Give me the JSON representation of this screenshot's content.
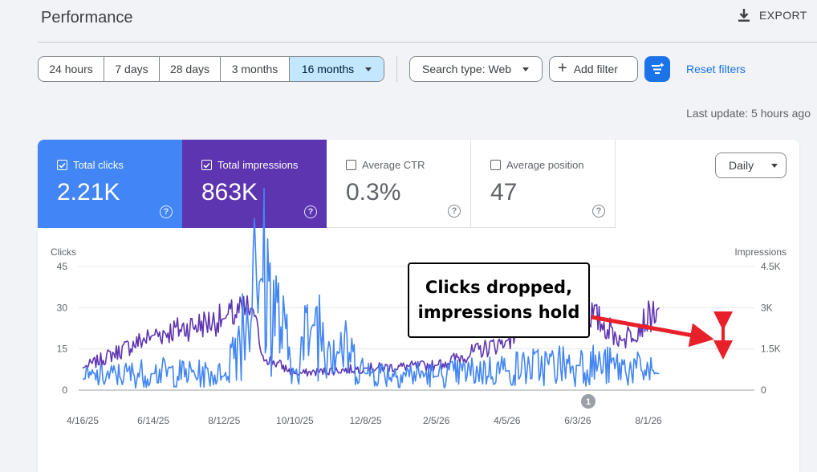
{
  "page": {
    "title": "Performance",
    "export_label": "EXPORT"
  },
  "date_range": {
    "options": [
      "24 hours",
      "7 days",
      "28 days",
      "3 months",
      "16 months"
    ],
    "selected": "16 months"
  },
  "filters": {
    "search_type": "Search type: Web",
    "add_filter": "Add filter",
    "reset": "Reset filters"
  },
  "last_update": "Last update: 5 hours ago",
  "metrics": [
    {
      "label": "Total clicks",
      "value": "2.21K",
      "checked": true,
      "color": "#4285f4"
    },
    {
      "label": "Total impressions",
      "value": "863K",
      "checked": true,
      "color": "#5e35b1"
    },
    {
      "label": "Average CTR",
      "value": "0.3%",
      "checked": false
    },
    {
      "label": "Average position",
      "value": "47",
      "checked": false
    }
  ],
  "granularity": "Daily",
  "annotation": {
    "marker": "1",
    "callout": "Clicks dropped, impressions hold",
    "arrow_color": "#e8202a"
  },
  "chart_data": {
    "type": "line",
    "x_tick_labels": [
      "4/16/25",
      "6/14/25",
      "8/12/25",
      "10/10/25",
      "12/8/25",
      "2/5/26",
      "4/5/26",
      "6/3/26",
      "8/1/26"
    ],
    "y_left": {
      "label": "Clicks",
      "ticks": [
        0,
        15,
        30,
        45
      ],
      "range": [
        0,
        45
      ]
    },
    "y_right": {
      "label": "Impressions",
      "ticks": [
        "0",
        "1.5K",
        "3K",
        "4.5K"
      ],
      "range": [
        0,
        4500
      ]
    },
    "grid": true,
    "series": [
      {
        "name": "Total impressions",
        "axis": "right",
        "color": "#5e35b1",
        "segments": [
          {
            "x": "4/16/25",
            "y": 800
          },
          {
            "x": "6/14/25",
            "y": 2000
          },
          {
            "x": "8/12/25",
            "y": 2600
          },
          {
            "x": "9/5/25",
            "y": 3000
          },
          {
            "x": "9/12/25",
            "y": 1300
          },
          {
            "x": "10/10/25",
            "y": 600
          },
          {
            "x": "12/8/25",
            "y": 800
          },
          {
            "x": "2/5/26",
            "y": 900
          },
          {
            "x": "4/5/26",
            "y": 1800
          },
          {
            "x": "5/10/26",
            "y": 3500
          },
          {
            "x": "6/3/26",
            "y": 3200
          },
          {
            "x": "7/10/26",
            "y": 1800
          },
          {
            "x": "8/10/26",
            "y": 3000
          }
        ]
      },
      {
        "name": "Total clicks",
        "axis": "left",
        "color": "#4285f4",
        "segments": [
          {
            "x": "4/16/25",
            "y": 4
          },
          {
            "x": "6/14/25",
            "y": 6
          },
          {
            "x": "8/12/25",
            "y": 5
          },
          {
            "x": "9/12/25",
            "y": 41
          },
          {
            "x": "10/10/25",
            "y": 6
          },
          {
            "x": "10/25/25",
            "y": 24
          },
          {
            "x": "12/8/25",
            "y": 6
          },
          {
            "x": "2/5/26",
            "y": 5
          },
          {
            "x": "4/5/26",
            "y": 7
          },
          {
            "x": "6/3/26",
            "y": 9
          },
          {
            "x": "8/10/26",
            "y": 6
          }
        ]
      }
    ]
  }
}
